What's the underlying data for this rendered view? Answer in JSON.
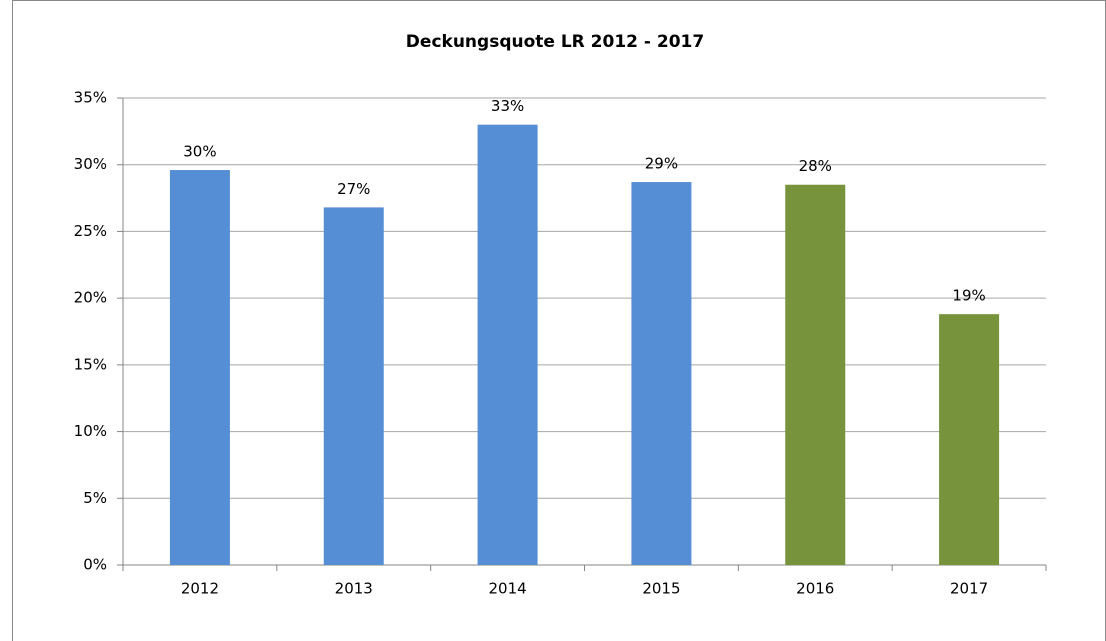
{
  "chart_data": {
    "type": "bar",
    "title": "Deckungsquote LR 2012 - 2017",
    "categories": [
      "2012",
      "2013",
      "2014",
      "2015",
      "2016",
      "2017"
    ],
    "values": [
      29.6,
      26.8,
      33.0,
      28.7,
      28.5,
      18.8
    ],
    "value_labels": [
      "30%",
      "27%",
      "33%",
      "29%",
      "28%",
      "19%"
    ],
    "colors": [
      "#558ed5",
      "#558ed5",
      "#558ed5",
      "#558ed5",
      "#77933c",
      "#77933c"
    ],
    "ylim": [
      0,
      35
    ],
    "yticks": [
      {
        "value": 0,
        "label": "0%"
      },
      {
        "value": 5,
        "label": "5%"
      },
      {
        "value": 10,
        "label": "10%"
      },
      {
        "value": 15,
        "label": "15%"
      },
      {
        "value": 20,
        "label": "20%"
      },
      {
        "value": 25,
        "label": "25%"
      },
      {
        "value": 30,
        "label": "30%"
      },
      {
        "value": 35,
        "label": "35%"
      }
    ],
    "grid": true
  }
}
